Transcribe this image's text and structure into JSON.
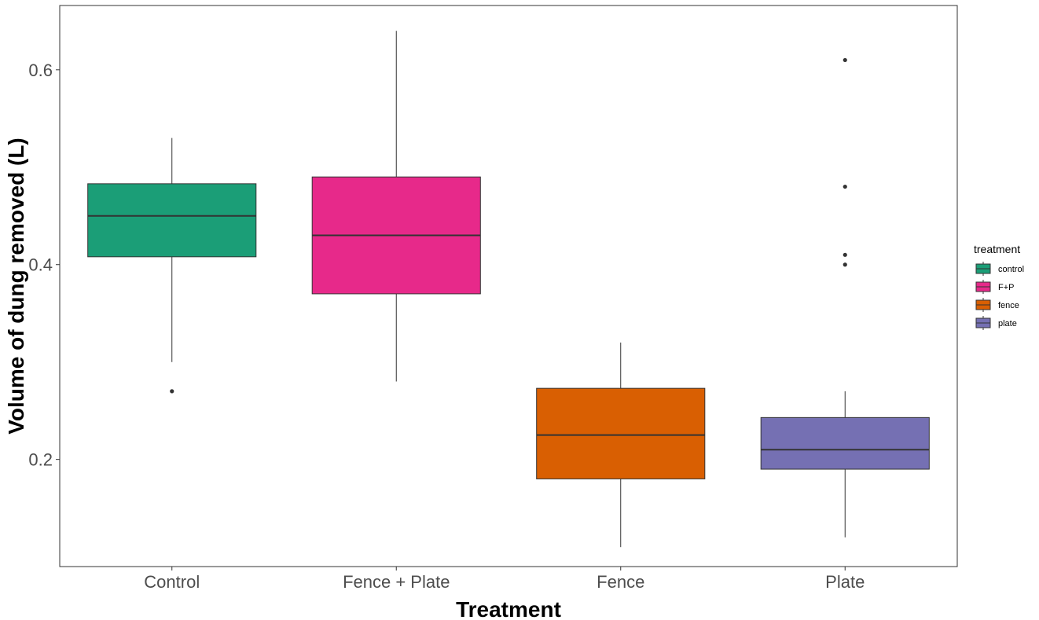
{
  "chart_data": {
    "type": "boxplot",
    "xlabel": "Treatment",
    "ylabel": "Volume of dung removed (L)",
    "ylim": [
      0.09,
      0.666
    ],
    "yticks": [
      0.2,
      0.4,
      0.6
    ],
    "ytick_labels": [
      "0.2",
      "0.4",
      "0.6"
    ],
    "grid": false,
    "legend_position": "right",
    "legend_title": "treatment",
    "categories": [
      "Control",
      "Fence + Plate",
      "Fence",
      "Plate"
    ],
    "series": [
      {
        "category": "Control",
        "legend": "control",
        "color": "#1B9E77",
        "q1": 0.408,
        "median": 0.45,
        "q3": 0.483,
        "whisker_low": 0.3,
        "whisker_high": 0.53,
        "outliers": [
          0.27
        ]
      },
      {
        "category": "Fence + Plate",
        "legend": "F+P",
        "color": "#E7298A",
        "q1": 0.37,
        "median": 0.43,
        "q3": 0.49,
        "whisker_low": 0.28,
        "whisker_high": 0.64,
        "outliers": []
      },
      {
        "category": "Fence",
        "legend": "fence",
        "color": "#D95F02",
        "q1": 0.18,
        "median": 0.225,
        "q3": 0.273,
        "whisker_low": 0.11,
        "whisker_high": 0.32,
        "outliers": []
      },
      {
        "category": "Plate",
        "legend": "plate",
        "color": "#7570B3",
        "q1": 0.19,
        "median": 0.21,
        "q3": 0.243,
        "whisker_low": 0.12,
        "whisker_high": 0.27,
        "outliers": [
          0.61,
          0.48,
          0.41,
          0.4
        ]
      }
    ]
  }
}
